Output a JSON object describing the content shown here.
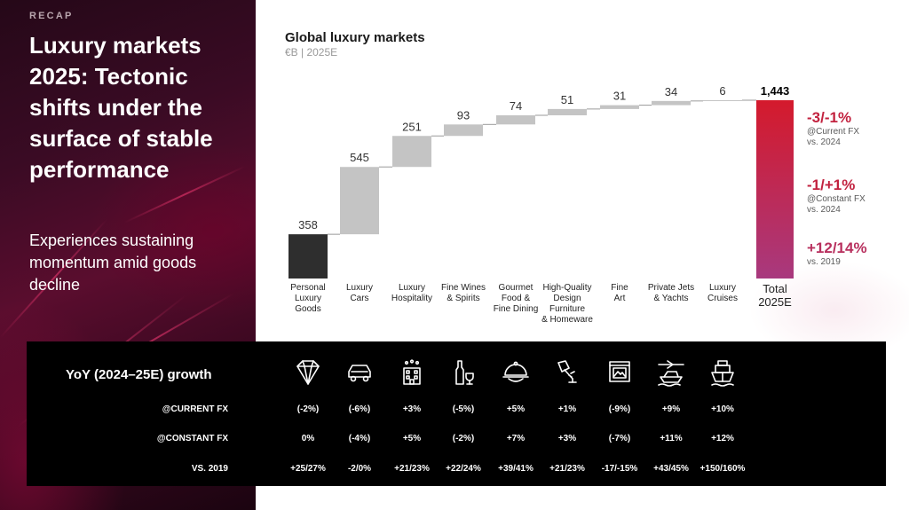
{
  "left": {
    "recap": "RECAP",
    "title": "Luxury markets 2025: Tectonic shifts under the surface of stable performance",
    "subtitle": "Experiences sustaining momentum amid goods decline"
  },
  "chart_data": {
    "type": "waterfall",
    "title": "Global luxury markets",
    "subtitle": "€B | 2025E",
    "categories": [
      "Personal Luxury Goods",
      "Luxury Cars",
      "Luxury Hospitality",
      "Fine Wines & Spirits",
      "Gourmet Food & Fine Dining",
      "High-Quality Design Furniture & Homeware",
      "Fine Art",
      "Private Jets & Yachts",
      "Luxury Cruises",
      "Total 2025E"
    ],
    "category_lines": [
      [
        "Personal",
        "Luxury",
        "Goods"
      ],
      [
        "Luxury",
        "Cars"
      ],
      [
        "Luxury",
        "Hospitality"
      ],
      [
        "Fine Wines",
        "& Spirits"
      ],
      [
        "Gourmet",
        "Food &",
        "Fine Dining"
      ],
      [
        "High-Quality",
        "Design",
        "Furniture",
        "& Homeware"
      ],
      [
        "Fine",
        "Art"
      ],
      [
        "Private Jets",
        "& Yachts"
      ],
      [
        "Luxury",
        "Cruises"
      ],
      [
        "Total",
        "2025E"
      ]
    ],
    "values": [
      358,
      545,
      251,
      93,
      74,
      51,
      31,
      34,
      6,
      1443
    ],
    "value_labels": [
      "358",
      "545",
      "251",
      "93",
      "74",
      "51",
      "31",
      "34",
      "6",
      "1,443"
    ],
    "total_index": 9,
    "colors": {
      "first": "#2e2e2e",
      "step": "#c4c4c4",
      "total_top": "#d41a2c",
      "total_bottom": "#a8397e"
    }
  },
  "callouts": [
    {
      "value": "-3/-1%",
      "line1": "@Current FX",
      "line2": "vs. 2024"
    },
    {
      "value": "-1/+1%",
      "line1": "@Constant FX",
      "line2": "vs. 2024"
    },
    {
      "value": "+12/14%",
      "line1": "vs. 2019",
      "line2": ""
    }
  ],
  "growth_table": {
    "title": "YoY (2024–25E) growth",
    "icons": [
      "diamond-icon",
      "car-icon",
      "hotel-icon",
      "wine-icon",
      "dining-cloche-icon",
      "lamp-icon",
      "framed-art-icon",
      "jet-yacht-icon",
      "cruise-ship-icon"
    ],
    "rows": [
      {
        "label": "@CURRENT FX",
        "values": [
          "(-2%)",
          "(-6%)",
          "+3%",
          "(-5%)",
          "+5%",
          "+1%",
          "(-9%)",
          "+9%",
          "+10%"
        ]
      },
      {
        "label": "@CONSTANT FX",
        "values": [
          "0%",
          "(-4%)",
          "+5%",
          "(-2%)",
          "+7%",
          "+3%",
          "(-7%)",
          "+11%",
          "+12%"
        ]
      },
      {
        "label": "VS. 2019",
        "values": [
          "+25/27%",
          "-2/0%",
          "+21/23%",
          "+22/24%",
          "+39/41%",
          "+21/23%",
          "-17/-15%",
          "+43/45%",
          "+150/160%"
        ]
      }
    ]
  }
}
